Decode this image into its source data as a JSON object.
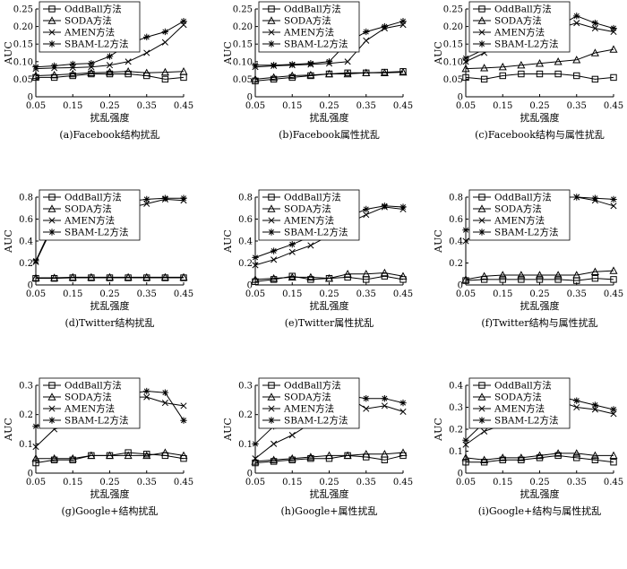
{
  "chart_data": [
    {
      "type": "line",
      "title": "(a)Facebook结构扰乱",
      "xlabel": "扰乱强度",
      "ylabel": "AUC",
      "xlim": [
        0.05,
        0.45
      ],
      "ylim": [
        0,
        0.25
      ],
      "xticks": [
        "0.05",
        "0.15",
        "0.25",
        "0.35",
        "0.45"
      ],
      "yticks": [
        "0",
        "0.05",
        "0.10",
        "0.15",
        "0.20",
        "0.25"
      ],
      "x": [
        0.05,
        0.1,
        0.15,
        0.2,
        0.25,
        0.3,
        0.35,
        0.4,
        0.45
      ],
      "series": [
        {
          "name": "OddBall方法",
          "marker": "square",
          "values": [
            0.055,
            0.055,
            0.06,
            0.065,
            0.065,
            0.065,
            0.06,
            0.05,
            0.055
          ]
        },
        {
          "name": "SODA方法",
          "marker": "triangle",
          "values": [
            0.06,
            0.062,
            0.065,
            0.068,
            0.07,
            0.072,
            0.068,
            0.07,
            0.072
          ]
        },
        {
          "name": "AMEN方法",
          "marker": "x",
          "values": [
            0.08,
            0.082,
            0.083,
            0.085,
            0.09,
            0.1,
            0.125,
            0.155,
            0.205
          ]
        },
        {
          "name": "SBAM-L2方法",
          "marker": "star",
          "values": [
            0.085,
            0.088,
            0.093,
            0.095,
            0.115,
            0.15,
            0.17,
            0.185,
            0.215
          ]
        }
      ]
    },
    {
      "type": "line",
      "title": "(b)Facebook属性扰乱",
      "xlabel": "扰乱强度",
      "ylabel": "AUC",
      "xlim": [
        0.05,
        0.45
      ],
      "ylim": [
        0,
        0.25
      ],
      "xticks": [
        "0.05",
        "0.15",
        "0.25",
        "0.35",
        "0.45"
      ],
      "yticks": [
        "0",
        "0.05",
        "0.10",
        "0.15",
        "0.20",
        "0.25"
      ],
      "x": [
        0.05,
        0.1,
        0.15,
        0.2,
        0.25,
        0.3,
        0.35,
        0.4,
        0.45
      ],
      "series": [
        {
          "name": "OddBall方法",
          "marker": "square",
          "values": [
            0.045,
            0.05,
            0.055,
            0.06,
            0.065,
            0.068,
            0.068,
            0.07,
            0.072
          ]
        },
        {
          "name": "SODA方法",
          "marker": "triangle",
          "values": [
            0.05,
            0.055,
            0.06,
            0.062,
            0.065,
            0.065,
            0.068,
            0.068,
            0.07
          ]
        },
        {
          "name": "AMEN方法",
          "marker": "x",
          "values": [
            0.085,
            0.088,
            0.09,
            0.092,
            0.095,
            0.1,
            0.16,
            0.195,
            0.205
          ]
        },
        {
          "name": "SBAM-L2方法",
          "marker": "star",
          "values": [
            0.09,
            0.09,
            0.092,
            0.095,
            0.1,
            0.155,
            0.185,
            0.2,
            0.215
          ]
        }
      ]
    },
    {
      "type": "line",
      "title": "(c)Facebook结构与属性扰乱",
      "xlabel": "扰乱强度",
      "ylabel": "AUC",
      "xlim": [
        0.05,
        0.45
      ],
      "ylim": [
        0,
        0.25
      ],
      "xticks": [
        "0.05",
        "0.15",
        "0.25",
        "0.35",
        "0.45"
      ],
      "yticks": [
        "0",
        "0.05",
        "0.10",
        "0.15",
        "0.20",
        "0.25"
      ],
      "x": [
        0.05,
        0.1,
        0.15,
        0.2,
        0.25,
        0.3,
        0.35,
        0.4,
        0.45
      ],
      "series": [
        {
          "name": "OddBall方法",
          "marker": "square",
          "values": [
            0.055,
            0.05,
            0.06,
            0.065,
            0.065,
            0.065,
            0.06,
            0.05,
            0.055
          ]
        },
        {
          "name": "SODA方法",
          "marker": "triangle",
          "values": [
            0.08,
            0.082,
            0.085,
            0.09,
            0.095,
            0.1,
            0.105,
            0.125,
            0.135
          ]
        },
        {
          "name": "AMEN方法",
          "marker": "x",
          "values": [
            0.1,
            0.125,
            0.15,
            0.17,
            0.18,
            0.195,
            0.21,
            0.195,
            0.185
          ]
        },
        {
          "name": "SBAM-L2方法",
          "marker": "star",
          "values": [
            0.11,
            0.135,
            0.175,
            0.19,
            0.195,
            0.2,
            0.23,
            0.21,
            0.195
          ]
        }
      ]
    },
    {
      "type": "line",
      "title": "(d)Twitter结构扰乱",
      "xlabel": "扰乱强度",
      "ylabel": "AUC",
      "xlim": [
        0.05,
        0.45
      ],
      "ylim": [
        0,
        0.8
      ],
      "xticks": [
        "0.05",
        "0.15",
        "0.25",
        "0.35",
        "0.45"
      ],
      "yticks": [
        "0",
        "0.2",
        "0.4",
        "0.6",
        "0.8"
      ],
      "x": [
        0.05,
        0.1,
        0.15,
        0.2,
        0.25,
        0.3,
        0.35,
        0.4,
        0.45
      ],
      "series": [
        {
          "name": "OddBall方法",
          "marker": "square",
          "values": [
            0.06,
            0.06,
            0.065,
            0.065,
            0.065,
            0.065,
            0.065,
            0.065,
            0.065
          ]
        },
        {
          "name": "SODA方法",
          "marker": "triangle",
          "values": [
            0.065,
            0.065,
            0.07,
            0.07,
            0.07,
            0.07,
            0.07,
            0.07,
            0.07
          ]
        },
        {
          "name": "AMEN方法",
          "marker": "x",
          "values": [
            0.21,
            0.56,
            0.58,
            0.62,
            0.66,
            0.7,
            0.74,
            0.78,
            0.77
          ]
        },
        {
          "name": "SBAM-L2方法",
          "marker": "star",
          "values": [
            0.22,
            0.58,
            0.66,
            0.7,
            0.73,
            0.76,
            0.78,
            0.79,
            0.79
          ]
        }
      ]
    },
    {
      "type": "line",
      "title": "(e)Twitter属性扰乱",
      "xlabel": "扰乱强度",
      "ylabel": "AUC",
      "xlim": [
        0.05,
        0.45
      ],
      "ylim": [
        0,
        0.8
      ],
      "xticks": [
        "0.05",
        "0.15",
        "0.25",
        "0.35",
        "0.45"
      ],
      "yticks": [
        "0",
        "0.2",
        "0.4",
        "0.6",
        "0.8"
      ],
      "x": [
        0.05,
        0.1,
        0.15,
        0.2,
        0.25,
        0.3,
        0.35,
        0.4,
        0.45
      ],
      "series": [
        {
          "name": "OddBall方法",
          "marker": "square",
          "values": [
            0.03,
            0.05,
            0.08,
            0.05,
            0.06,
            0.07,
            0.05,
            0.08,
            0.05
          ]
        },
        {
          "name": "SODA方法",
          "marker": "triangle",
          "values": [
            0.05,
            0.06,
            0.07,
            0.07,
            0.06,
            0.1,
            0.1,
            0.11,
            0.08
          ]
        },
        {
          "name": "AMEN方法",
          "marker": "x",
          "values": [
            0.18,
            0.23,
            0.3,
            0.36,
            0.45,
            0.56,
            0.64,
            0.71,
            0.69
          ]
        },
        {
          "name": "SBAM-L2方法",
          "marker": "star",
          "values": [
            0.25,
            0.31,
            0.37,
            0.44,
            0.52,
            0.62,
            0.69,
            0.72,
            0.71
          ]
        }
      ]
    },
    {
      "type": "line",
      "title": "(f)Twitter结构与属性扰乱",
      "xlabel": "扰乱强度",
      "ylabel": "AUC",
      "xlim": [
        0.05,
        0.45
      ],
      "ylim": [
        0,
        0.8
      ],
      "xticks": [
        "0.05",
        "0.15",
        "0.25",
        "0.35",
        "0.45"
      ],
      "yticks": [
        "0",
        "0.2",
        "0.4",
        "0.6",
        "0.8"
      ],
      "x": [
        0.05,
        0.1,
        0.15,
        0.2,
        0.25,
        0.3,
        0.35,
        0.4,
        0.45
      ],
      "series": [
        {
          "name": "OddBall方法",
          "marker": "square",
          "values": [
            0.04,
            0.05,
            0.05,
            0.05,
            0.05,
            0.05,
            0.04,
            0.06,
            0.05
          ]
        },
        {
          "name": "SODA方法",
          "marker": "triangle",
          "values": [
            0.05,
            0.08,
            0.09,
            0.09,
            0.09,
            0.09,
            0.09,
            0.12,
            0.13
          ]
        },
        {
          "name": "AMEN方法",
          "marker": "x",
          "values": [
            0.4,
            0.52,
            0.62,
            0.67,
            0.72,
            0.8,
            0.8,
            0.77,
            0.72
          ]
        },
        {
          "name": "SBAM-L2方法",
          "marker": "star",
          "values": [
            0.5,
            0.53,
            0.66,
            0.7,
            0.75,
            0.8,
            0.8,
            0.79,
            0.78
          ]
        }
      ]
    },
    {
      "type": "line",
      "title": "(g)Google+结构扰乱",
      "xlabel": "扰乱强度",
      "ylabel": "AUC",
      "xlim": [
        0.05,
        0.45
      ],
      "ylim": [
        0,
        0.3
      ],
      "xticks": [
        "0.05",
        "0.15",
        "0.25",
        "0.35",
        "0.45"
      ],
      "yticks": [
        "0",
        "0.1",
        "0.2",
        "0.3"
      ],
      "x": [
        0.05,
        0.1,
        0.15,
        0.2,
        0.25,
        0.3,
        0.35,
        0.4,
        0.45
      ],
      "series": [
        {
          "name": "OddBall方法",
          "marker": "square",
          "values": [
            0.035,
            0.045,
            0.045,
            0.06,
            0.06,
            0.07,
            0.065,
            0.06,
            0.05
          ]
        },
        {
          "name": "SODA方法",
          "marker": "triangle",
          "values": [
            0.05,
            0.05,
            0.05,
            0.06,
            0.06,
            0.06,
            0.06,
            0.07,
            0.06
          ]
        },
        {
          "name": "AMEN方法",
          "marker": "x",
          "values": [
            0.09,
            0.15,
            0.17,
            0.22,
            0.25,
            0.26,
            0.26,
            0.24,
            0.23
          ]
        },
        {
          "name": "SBAM-L2方法",
          "marker": "star",
          "values": [
            0.16,
            0.18,
            0.22,
            0.25,
            0.27,
            0.27,
            0.28,
            0.275,
            0.18
          ]
        }
      ]
    },
    {
      "type": "line",
      "title": "(h)Google+属性扰乱",
      "xlabel": "扰乱强度",
      "ylabel": "AUC",
      "xlim": [
        0.05,
        0.45
      ],
      "ylim": [
        0,
        0.3
      ],
      "xticks": [
        "0.05",
        "0.15",
        "0.25",
        "0.35",
        "0.45"
      ],
      "yticks": [
        "0",
        "0.1",
        "0.2",
        "0.3"
      ],
      "x": [
        0.05,
        0.1,
        0.15,
        0.2,
        0.25,
        0.3,
        0.35,
        0.4,
        0.45
      ],
      "series": [
        {
          "name": "OddBall方法",
          "marker": "square",
          "values": [
            0.035,
            0.04,
            0.045,
            0.05,
            0.05,
            0.06,
            0.055,
            0.045,
            0.06
          ]
        },
        {
          "name": "SODA方法",
          "marker": "triangle",
          "values": [
            0.04,
            0.045,
            0.05,
            0.055,
            0.06,
            0.06,
            0.065,
            0.065,
            0.07
          ]
        },
        {
          "name": "AMEN方法",
          "marker": "x",
          "values": [
            0.05,
            0.1,
            0.13,
            0.17,
            0.21,
            0.26,
            0.22,
            0.23,
            0.21
          ]
        },
        {
          "name": "SBAM-L2方法",
          "marker": "star",
          "values": [
            0.1,
            0.16,
            0.175,
            0.22,
            0.25,
            0.265,
            0.255,
            0.255,
            0.24
          ]
        }
      ]
    },
    {
      "type": "line",
      "title": "(i)Google+结构与属性扰乱",
      "xlabel": "扰乱强度",
      "ylabel": "AUC",
      "xlim": [
        0.05,
        0.45
      ],
      "ylim": [
        0,
        0.4
      ],
      "xticks": [
        "0.05",
        "0.15",
        "0.25",
        "0.35",
        "0.45"
      ],
      "yticks": [
        "0",
        "0.1",
        "0.2",
        "0.3",
        "0.4"
      ],
      "x": [
        0.05,
        0.1,
        0.15,
        0.2,
        0.25,
        0.3,
        0.35,
        0.4,
        0.45
      ],
      "series": [
        {
          "name": "OddBall方法",
          "marker": "square",
          "values": [
            0.05,
            0.05,
            0.06,
            0.06,
            0.07,
            0.08,
            0.07,
            0.06,
            0.05
          ]
        },
        {
          "name": "SODA方法",
          "marker": "triangle",
          "values": [
            0.07,
            0.06,
            0.07,
            0.07,
            0.08,
            0.09,
            0.09,
            0.08,
            0.08
          ]
        },
        {
          "name": "AMEN方法",
          "marker": "x",
          "values": [
            0.13,
            0.19,
            0.22,
            0.27,
            0.3,
            0.33,
            0.3,
            0.29,
            0.27
          ]
        },
        {
          "name": "SBAM-L2方法",
          "marker": "star",
          "values": [
            0.15,
            0.23,
            0.27,
            0.3,
            0.33,
            0.35,
            0.33,
            0.31,
            0.29
          ]
        }
      ]
    }
  ]
}
